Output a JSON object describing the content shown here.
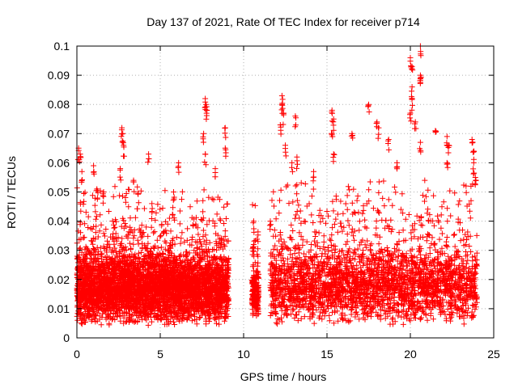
{
  "chart_data": {
    "type": "scatter",
    "title": "Day 137 of 2021, Rate Of TEC Index for receiver p714",
    "xlabel": "GPS time / hours",
    "ylabel": "ROTI / TECUs",
    "xlim": [
      0,
      25
    ],
    "ylim": [
      0,
      0.1
    ],
    "xticks": [
      0,
      5,
      10,
      15,
      20,
      25
    ],
    "xtick_labels": [
      "0",
      "5",
      "10",
      "15",
      "20",
      "25"
    ],
    "yticks": [
      0,
      0.01,
      0.02,
      0.03,
      0.04,
      0.05,
      0.06,
      0.07,
      0.08,
      0.09,
      0.1
    ],
    "ytick_labels": [
      "0",
      "0.01",
      "0.02",
      "0.03",
      "0.04",
      "0.05",
      "0.06",
      "0.07",
      "0.08",
      "0.09",
      "0.1"
    ],
    "grid": true,
    "marker": "+",
    "marker_color": "#ff0000",
    "series": [
      {
        "name": "ROTI",
        "description": "dense ROTI samples, ~0.005-0.03 TECU/min baseline",
        "segments": [
          {
            "x_start": 0.0,
            "x_end": 9.1,
            "baseline_min": 0.004,
            "baseline_max": 0.03
          },
          {
            "x_start": 10.5,
            "x_end": 10.9,
            "baseline_min": 0.006,
            "baseline_max": 0.024
          },
          {
            "x_start": 11.6,
            "x_end": 24.0,
            "baseline_min": 0.004,
            "baseline_max": 0.032
          }
        ],
        "outliers": [
          {
            "x": 0.1,
            "y": 0.065
          },
          {
            "x": 0.2,
            "y": 0.063
          },
          {
            "x": 0.3,
            "y": 0.057
          },
          {
            "x": 1.0,
            "y": 0.059
          },
          {
            "x": 1.2,
            "y": 0.051
          },
          {
            "x": 1.6,
            "y": 0.05
          },
          {
            "x": 2.7,
            "y": 0.072
          },
          {
            "x": 2.75,
            "y": 0.07
          },
          {
            "x": 2.8,
            "y": 0.066
          },
          {
            "x": 2.6,
            "y": 0.058
          },
          {
            "x": 3.4,
            "y": 0.054
          },
          {
            "x": 4.3,
            "y": 0.063
          },
          {
            "x": 4.5,
            "y": 0.046
          },
          {
            "x": 6.1,
            "y": 0.06
          },
          {
            "x": 5.8,
            "y": 0.05
          },
          {
            "x": 7.7,
            "y": 0.082
          },
          {
            "x": 7.75,
            "y": 0.08
          },
          {
            "x": 7.8,
            "y": 0.078
          },
          {
            "x": 7.6,
            "y": 0.07
          },
          {
            "x": 7.7,
            "y": 0.063
          },
          {
            "x": 8.3,
            "y": 0.058
          },
          {
            "x": 8.9,
            "y": 0.072
          },
          {
            "x": 8.9,
            "y": 0.065
          },
          {
            "x": 10.6,
            "y": 0.04
          },
          {
            "x": 10.6,
            "y": 0.032
          },
          {
            "x": 11.6,
            "y": 0.04
          },
          {
            "x": 12.3,
            "y": 0.083
          },
          {
            "x": 12.3,
            "y": 0.08
          },
          {
            "x": 12.4,
            "y": 0.077
          },
          {
            "x": 12.2,
            "y": 0.073
          },
          {
            "x": 12.5,
            "y": 0.066
          },
          {
            "x": 13.1,
            "y": 0.076
          },
          {
            "x": 13.2,
            "y": 0.062
          },
          {
            "x": 12.9,
            "y": 0.06
          },
          {
            "x": 14.2,
            "y": 0.057
          },
          {
            "x": 15.3,
            "y": 0.078
          },
          {
            "x": 15.4,
            "y": 0.075
          },
          {
            "x": 15.3,
            "y": 0.07
          },
          {
            "x": 15.4,
            "y": 0.063
          },
          {
            "x": 16.5,
            "y": 0.07
          },
          {
            "x": 17.5,
            "y": 0.08
          },
          {
            "x": 18.0,
            "y": 0.074
          },
          {
            "x": 18.1,
            "y": 0.072
          },
          {
            "x": 18.7,
            "y": 0.068
          },
          {
            "x": 19.2,
            "y": 0.06
          },
          {
            "x": 20.0,
            "y": 0.096
          },
          {
            "x": 20.1,
            "y": 0.093
          },
          {
            "x": 20.1,
            "y": 0.086
          },
          {
            "x": 20.1,
            "y": 0.082
          },
          {
            "x": 20.0,
            "y": 0.077
          },
          {
            "x": 20.3,
            "y": 0.074
          },
          {
            "x": 20.6,
            "y": 0.1
          },
          {
            "x": 20.6,
            "y": 0.09
          },
          {
            "x": 20.6,
            "y": 0.089
          },
          {
            "x": 20.6,
            "y": 0.067
          },
          {
            "x": 21.5,
            "y": 0.071
          },
          {
            "x": 22.2,
            "y": 0.069
          },
          {
            "x": 22.3,
            "y": 0.066
          },
          {
            "x": 22.2,
            "y": 0.06
          },
          {
            "x": 23.7,
            "y": 0.068
          },
          {
            "x": 23.8,
            "y": 0.064
          },
          {
            "x": 23.8,
            "y": 0.06
          },
          {
            "x": 23.9,
            "y": 0.055
          }
        ]
      }
    ]
  }
}
